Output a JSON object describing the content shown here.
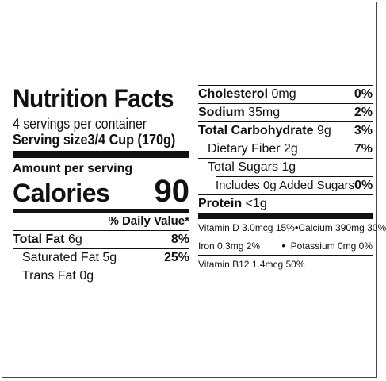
{
  "title": "Nutrition Facts",
  "servings": "4 servings per container",
  "serving_size": {
    "label": "Serving size",
    "value": "3/4 Cup (170g)"
  },
  "amount_per_serving": "Amount per serving",
  "calories": {
    "label": "Calories",
    "value": "90"
  },
  "daily_value_header": "% Daily Value*",
  "left_nutrients": [
    {
      "name": "Total Fat",
      "amount": "6g",
      "dv": "8%"
    },
    {
      "name": "Saturated Fat",
      "amount": "5g",
      "dv": "25%"
    },
    {
      "name": "Trans Fat",
      "amount": "0g",
      "dv": ""
    }
  ],
  "right_nutrients": [
    {
      "name": "Cholesterol",
      "amount": "0mg",
      "dv": "0%"
    },
    {
      "name": "Sodium",
      "amount": "35mg",
      "dv": "2%"
    },
    {
      "name": "Total Carbohydrate",
      "amount": "9g",
      "dv": "3%"
    },
    {
      "name": "Dietary Fiber",
      "amount": "2g",
      "dv": "7%"
    },
    {
      "name": "Total Sugars",
      "amount": "1g",
      "dv": ""
    },
    {
      "name": "Includes",
      "amount": "0g Added Sugars",
      "dv": "0%"
    },
    {
      "name": "Protein",
      "amount": "<1g",
      "dv": ""
    }
  ],
  "vitamins": {
    "vitamin_d": "Vitamin D 3.0mcg 15%",
    "calcium": "Calcium 390mg 30%",
    "iron": "Iron 0.3mg 2%",
    "potassium": "Potassium 0mg 0%",
    "vitamin_b12": "Vitamin B12 1.4mcg 50%",
    "separator": "•"
  }
}
